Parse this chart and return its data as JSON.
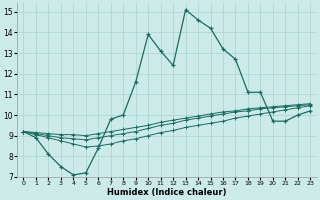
{
  "xlabel": "Humidex (Indice chaleur)",
  "xlim": [
    -0.5,
    23.5
  ],
  "ylim": [
    7,
    15.4
  ],
  "xticks": [
    0,
    1,
    2,
    3,
    4,
    5,
    6,
    7,
    8,
    9,
    10,
    11,
    12,
    13,
    14,
    15,
    16,
    17,
    18,
    19,
    20,
    21,
    22,
    23
  ],
  "yticks": [
    7,
    8,
    9,
    10,
    11,
    12,
    13,
    14,
    15
  ],
  "bg_color": "#cceae8",
  "grid_color": "#aad4d0",
  "line_color": "#1a6b63",
  "main_x": [
    0,
    1,
    2,
    3,
    4,
    5,
    6,
    7,
    8,
    9,
    10,
    11,
    12,
    13,
    14,
    15,
    16,
    17,
    18,
    19,
    20,
    21,
    22,
    23
  ],
  "main_y": [
    9.2,
    8.9,
    8.1,
    7.5,
    7.1,
    7.2,
    8.4,
    9.8,
    10.0,
    11.6,
    13.9,
    13.1,
    12.4,
    15.1,
    14.6,
    14.2,
    13.2,
    12.7,
    11.1,
    11.1,
    9.7,
    9.7,
    10.0,
    10.2
  ],
  "line1_x": [
    0,
    1,
    2,
    3,
    4,
    5,
    6,
    7,
    8,
    9,
    10,
    11,
    12,
    13,
    14,
    15,
    16,
    17,
    18,
    19,
    20,
    21,
    22,
    23
  ],
  "line1_y": [
    9.2,
    9.05,
    8.9,
    8.75,
    8.6,
    8.45,
    8.5,
    8.6,
    8.75,
    8.85,
    9.0,
    9.15,
    9.25,
    9.4,
    9.5,
    9.6,
    9.7,
    9.85,
    9.95,
    10.05,
    10.15,
    10.25,
    10.35,
    10.45
  ],
  "line2_x": [
    0,
    1,
    2,
    3,
    4,
    5,
    6,
    7,
    8,
    9,
    10,
    11,
    12,
    13,
    14,
    15,
    16,
    17,
    18,
    19,
    20,
    21,
    22,
    23
  ],
  "line2_y": [
    9.2,
    9.1,
    9.0,
    8.9,
    8.85,
    8.8,
    8.9,
    9.0,
    9.1,
    9.2,
    9.35,
    9.5,
    9.6,
    9.75,
    9.85,
    9.95,
    10.05,
    10.15,
    10.2,
    10.3,
    10.35,
    10.4,
    10.45,
    10.5
  ],
  "line3_x": [
    0,
    1,
    2,
    3,
    4,
    5,
    6,
    7,
    8,
    9,
    10,
    11,
    12,
    13,
    14,
    15,
    16,
    17,
    18,
    19,
    20,
    21,
    22,
    23
  ],
  "line3_y": [
    9.2,
    9.15,
    9.1,
    9.05,
    9.05,
    9.0,
    9.1,
    9.2,
    9.3,
    9.4,
    9.5,
    9.65,
    9.75,
    9.85,
    9.95,
    10.05,
    10.15,
    10.2,
    10.3,
    10.35,
    10.4,
    10.45,
    10.5,
    10.55
  ]
}
